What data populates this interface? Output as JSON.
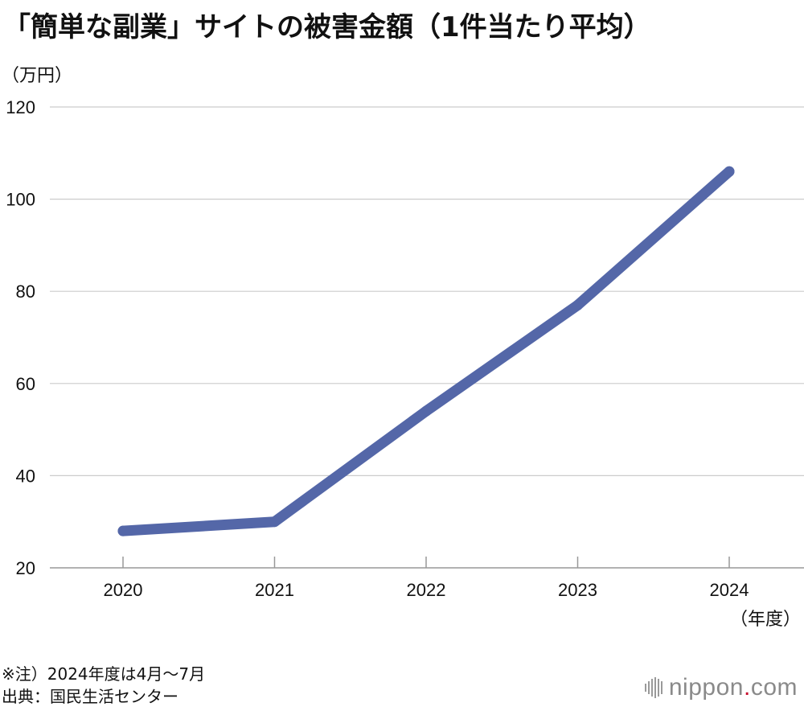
{
  "header": {
    "title": "「簡単な副業」サイトの被害金額（1件当たり平均）",
    "y_unit": "（万円）",
    "x_unit": "（年度）"
  },
  "chart_data": {
    "type": "line",
    "title": "「簡単な副業」サイトの被害金額（1件当たり平均）",
    "ylabel": "（万円）",
    "xlabel": "（年度）",
    "x": [
      "2020",
      "2021",
      "2022",
      "2023",
      "2024"
    ],
    "series": [
      {
        "name": "",
        "values": [
          28,
          30,
          54,
          77,
          106
        ],
        "color": "#5467a8"
      }
    ],
    "ylim": [
      20,
      120
    ],
    "yticks": [
      "20",
      "40",
      "60",
      "80",
      "100",
      "120"
    ],
    "grid": true,
    "legend": "none"
  },
  "footer": {
    "note": "※注）2024年度は4月～7月",
    "source": "出典：国民生活センター",
    "brand_name": "nippon",
    "brand_dot": ".",
    "brand_tld": "com"
  },
  "colors": {
    "line": "#5467a8",
    "grid": "#cccccc",
    "axis": "#999999",
    "brand_dot": "#c8102e"
  }
}
